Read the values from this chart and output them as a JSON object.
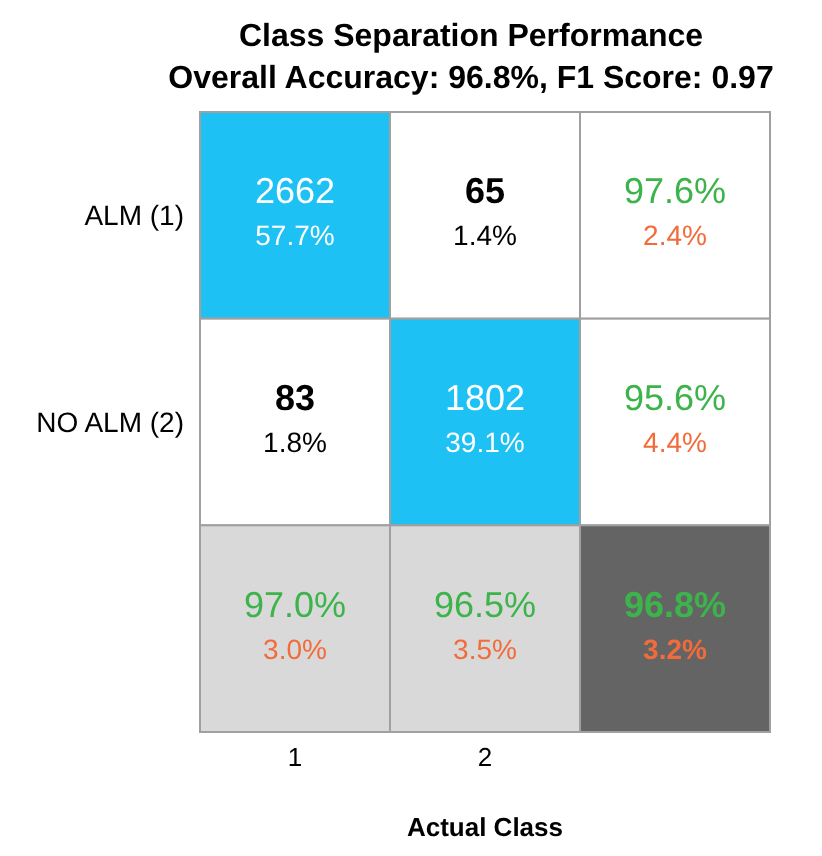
{
  "chart_data": {
    "type": "heatmap",
    "title": "Class Separation Performance",
    "subtitle": "Overall Accuracy: 96.8%, F1 Score: 0.97",
    "xlabel": "Actual Class",
    "categories": [
      "1",
      "2",
      null
    ],
    "y_categories": [
      "ALM (1)",
      "NO ALM (2)",
      null
    ],
    "cells": [
      [
        2662,
        65,
        97.6
      ],
      [
        83,
        1802,
        95.6
      ],
      [
        97.0,
        96.5,
        96.8
      ]
    ],
    "cell_labels": [
      [
        "2662",
        "65",
        "97.6%"
      ],
      [
        "83",
        "1802",
        "95.6%"
      ],
      [
        "97.0%",
        "96.5%",
        "96.8%"
      ]
    ],
    "annotations": [
      "57.7%",
      "1.4%",
      "2.4%",
      "1.8%",
      "39.1%",
      "4.4%",
      "3.0%",
      "3.5%",
      "3.2%"
    ],
    "colors": [
      [
        "#1ec1f4",
        "#ffffff",
        "#ffffff"
      ],
      [
        "#ffffff",
        "#1ec1f4",
        "#ffffff"
      ],
      [
        "#d9d9d9",
        "#d9d9d9",
        "#646464"
      ]
    ]
  }
}
